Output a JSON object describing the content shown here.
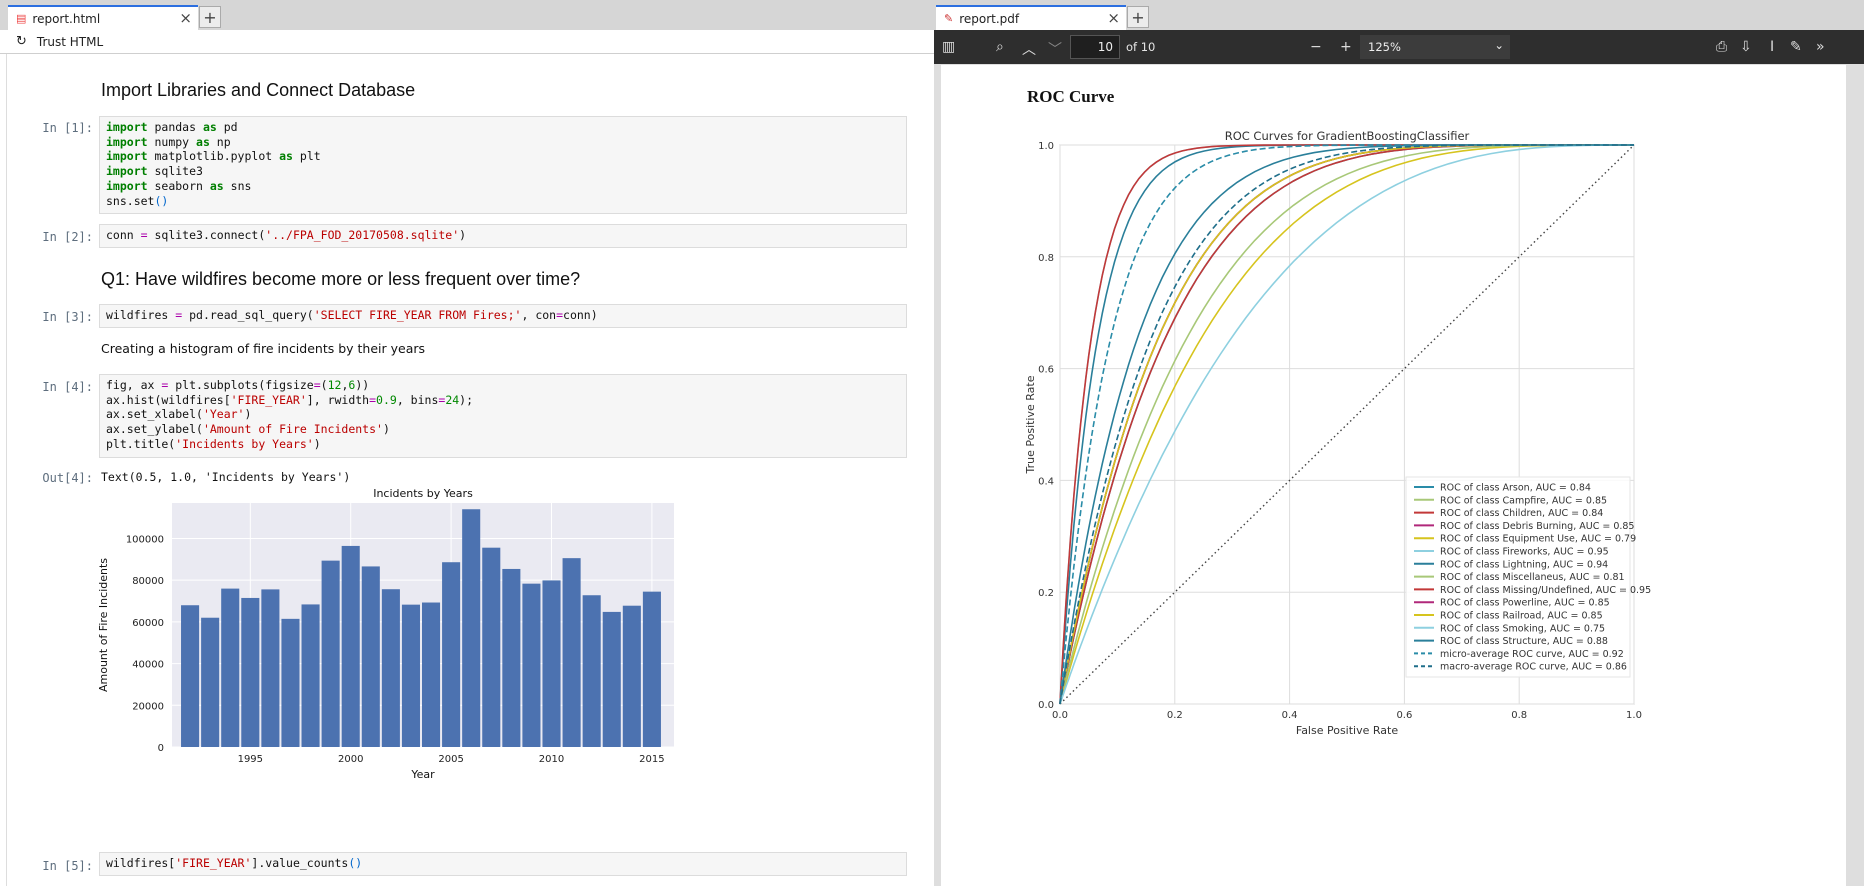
{
  "left": {
    "tab": {
      "title": "report.html",
      "close": "×",
      "add": "+"
    },
    "toolbar": {
      "refresh_icon": "refresh-icon",
      "trust": "Trust HTML"
    },
    "headings": {
      "h1": "Import Libraries and Connect Database",
      "h2": "Q1: Have wildfires become more or less frequent over time?"
    },
    "labels": {
      "in1": "In [1]:",
      "in2": "In [2]:",
      "in3": "In [3]:",
      "in4": "In [4]:",
      "out4": "Out[4]:",
      "in5": "In [5]:"
    },
    "markdown": "Creating a histogram of fire incidents by their years",
    "output4": "Text(0.5, 1.0, 'Incidents by Years')",
    "hist": {
      "title": "Incidents by Years",
      "xlabel": "Year",
      "ylabel": "Amount of Fire Incidents",
      "xticks": [
        1995,
        2000,
        2005,
        2010,
        2015
      ],
      "yticks": [
        0,
        20000,
        40000,
        60000,
        80000,
        100000
      ],
      "ylim": [
        0,
        117000
      ],
      "xlim": [
        1991.1,
        2016.1
      ],
      "years": [
        1992,
        1993,
        1994,
        1995,
        1996,
        1997,
        1998,
        1999,
        2000,
        2001,
        2002,
        2003,
        2004,
        2005,
        2006,
        2007,
        2008,
        2009,
        2010,
        2011,
        2012,
        2013,
        2014,
        2015
      ],
      "values": [
        67975,
        61989,
        75955,
        71472,
        75574,
        61450,
        68370,
        89363,
        96416,
        86587,
        75656,
        68261,
        69279,
        88604,
        114004,
        95573,
        85378,
        78325,
        79889,
        90552,
        72769,
        64780,
        67753,
        74491
      ],
      "color": "#4c72b0"
    }
  },
  "right": {
    "tab": {
      "title": "report.pdf",
      "close": "×",
      "add": "+"
    },
    "toolbar": {
      "page": "10",
      "of": "of 10",
      "zoom": "125%",
      "minus": "−",
      "plus": "+"
    },
    "heading": "ROC Curve"
  },
  "chart_data": [
    {
      "type": "bar",
      "title": "Incidents by Years",
      "xlabel": "Year",
      "ylabel": "Amount of Fire Incidents",
      "categories": [
        1992,
        1993,
        1994,
        1995,
        1996,
        1997,
        1998,
        1999,
        2000,
        2001,
        2002,
        2003,
        2004,
        2005,
        2006,
        2007,
        2008,
        2009,
        2010,
        2011,
        2012,
        2013,
        2014,
        2015
      ],
      "values": [
        67975,
        61989,
        75955,
        71472,
        75574,
        61450,
        68370,
        89363,
        96416,
        86587,
        75656,
        68261,
        69279,
        88604,
        114004,
        95573,
        85378,
        78325,
        79889,
        90552,
        72769,
        64780,
        67753,
        74491
      ]
    },
    {
      "type": "line",
      "title": "ROC Curves for GradientBoostingClassifier",
      "xlabel": "False Positive Rate",
      "ylabel": "True Positive Rate",
      "xlim": [
        0,
        1
      ],
      "ylim": [
        0,
        1
      ],
      "xticks": [
        0.0,
        0.2,
        0.4,
        0.6,
        0.8,
        1.0
      ],
      "yticks": [
        0.0,
        0.2,
        0.4,
        0.6,
        0.8,
        1.0
      ],
      "legend": "lower-right",
      "grid": true,
      "series": [
        {
          "name": "ROC of class Arson, AUC = 0.84",
          "auc": 0.84,
          "color": "#2a8ca8",
          "dash": false
        },
        {
          "name": "ROC of class Campfire, AUC = 0.85",
          "auc": 0.85,
          "color": "#a8c878",
          "dash": false
        },
        {
          "name": "ROC of class Children, AUC = 0.84",
          "auc": 0.84,
          "color": "#c23838",
          "dash": false
        },
        {
          "name": "ROC of class Debris Burning, AUC = 0.85",
          "auc": 0.85,
          "color": "#b0287a",
          "dash": false
        },
        {
          "name": "ROC of class Equipment Use, AUC = 0.79",
          "auc": 0.79,
          "color": "#d6c41e",
          "dash": false
        },
        {
          "name": "ROC of class Fireworks, AUC = 0.95",
          "auc": 0.95,
          "color": "#8ed0e0",
          "dash": false
        },
        {
          "name": "ROC of class Lightning, AUC = 0.94",
          "auc": 0.94,
          "color": "#2a7f9a",
          "dash": false
        },
        {
          "name": "ROC of class Miscellaneus, AUC = 0.81",
          "auc": 0.81,
          "color": "#a8c878",
          "dash": false
        },
        {
          "name": "ROC of class Missing/Undefined, AUC = 0.95",
          "auc": 0.95,
          "color": "#c23838",
          "dash": false
        },
        {
          "name": "ROC of class Powerline, AUC = 0.85",
          "auc": 0.85,
          "color": "#b0287a",
          "dash": false
        },
        {
          "name": "ROC of class Railroad, AUC = 0.85",
          "auc": 0.85,
          "color": "#d6c41e",
          "dash": false
        },
        {
          "name": "ROC of class Smoking, AUC = 0.75",
          "auc": 0.75,
          "color": "#8ed0e0",
          "dash": false
        },
        {
          "name": "ROC of class Structure, AUC = 0.88",
          "auc": 0.88,
          "color": "#2a7f9a",
          "dash": false
        },
        {
          "name": "micro-average ROC curve, AUC = 0.92",
          "auc": 0.92,
          "color": "#2a8ca8",
          "dash": true
        },
        {
          "name": "macro-average ROC curve, AUC = 0.86",
          "auc": 0.86,
          "color": "#1f6e8a",
          "dash": true
        }
      ]
    }
  ]
}
